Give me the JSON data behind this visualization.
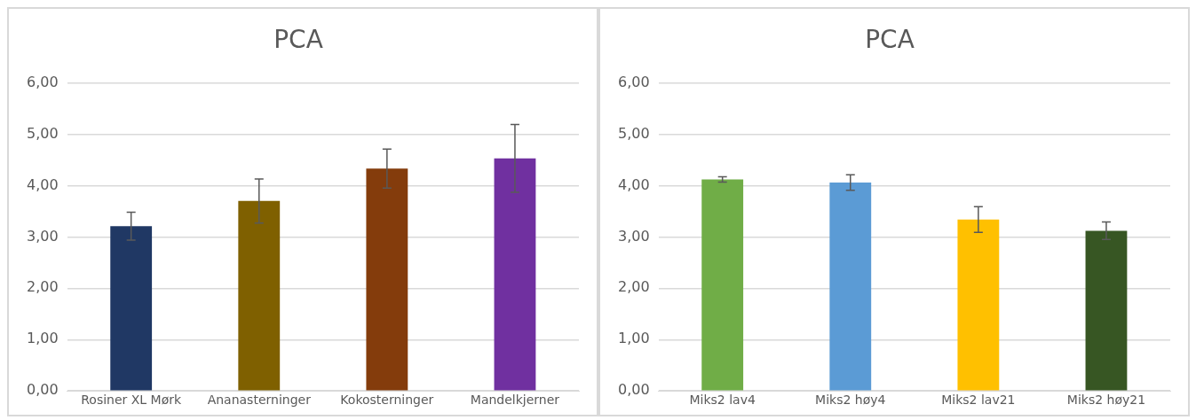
{
  "chart_data": [
    {
      "type": "bar",
      "title": "PCA",
      "categories": [
        "Rosiner XL Mørk",
        "Ananasterninger",
        "Kokosterninger",
        "Mandelkjerner"
      ],
      "values": [
        3.21,
        3.7,
        4.33,
        4.53
      ],
      "errors": [
        0.27,
        0.43,
        0.38,
        0.66
      ],
      "colors": [
        "#203864",
        "#7f6000",
        "#843c0c",
        "#7030a0"
      ],
      "ylim": [
        0,
        6
      ],
      "yticks": [
        {
          "value": 0,
          "label": "0,00"
        },
        {
          "value": 1,
          "label": "1,00"
        },
        {
          "value": 2,
          "label": "2,00"
        },
        {
          "value": 3,
          "label": "3,00"
        },
        {
          "value": 4,
          "label": "4,00"
        },
        {
          "value": 5,
          "label": "5,00"
        },
        {
          "value": 6,
          "label": "6,00"
        }
      ],
      "grid": "y",
      "legend": false
    },
    {
      "type": "bar",
      "title": "PCA",
      "categories": [
        "Miks2 lav4",
        "Miks2 høy4",
        "Miks2 lav21",
        "Miks2 høy21"
      ],
      "values": [
        4.12,
        4.06,
        3.34,
        3.12
      ],
      "errors": [
        0.05,
        0.15,
        0.25,
        0.17
      ],
      "colors": [
        "#70ad47",
        "#5b9bd5",
        "#ffc000",
        "#375623"
      ],
      "ylim": [
        0,
        6
      ],
      "yticks": [
        {
          "value": 0,
          "label": "0,00"
        },
        {
          "value": 1,
          "label": "1,00"
        },
        {
          "value": 2,
          "label": "2,00"
        },
        {
          "value": 3,
          "label": "3,00"
        },
        {
          "value": 4,
          "label": "4,00"
        },
        {
          "value": 5,
          "label": "5,00"
        },
        {
          "value": 6,
          "label": "6,00"
        }
      ],
      "grid": "y",
      "legend": false
    }
  ]
}
